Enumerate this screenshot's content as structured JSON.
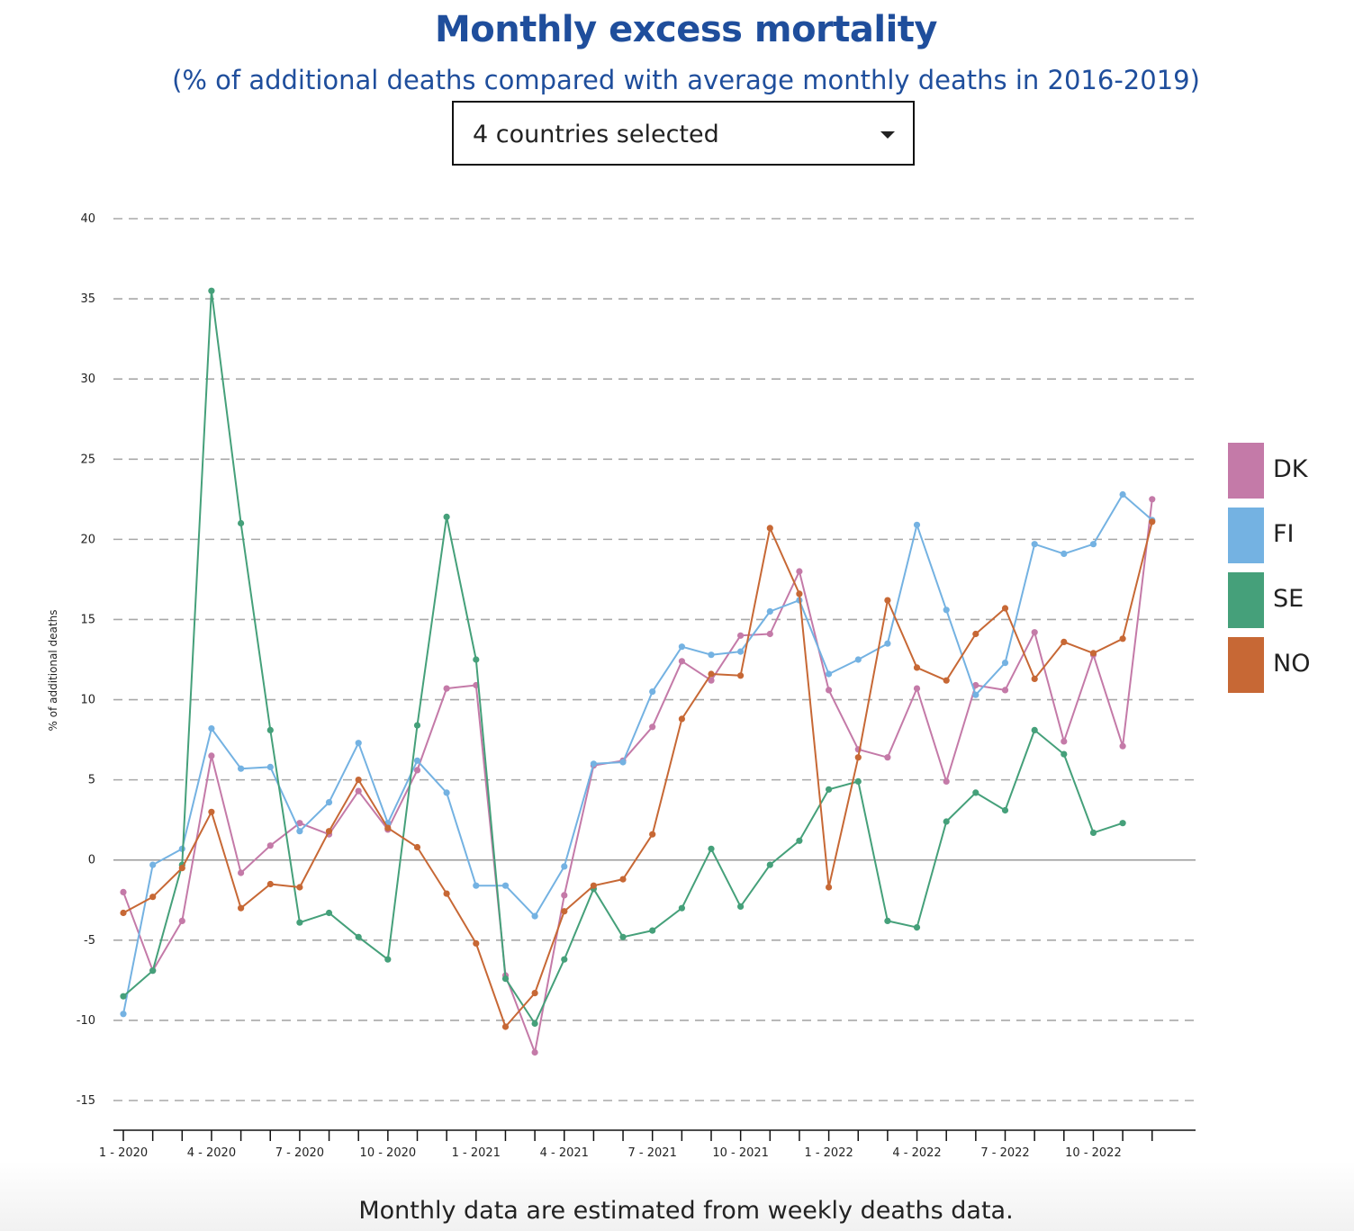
{
  "header": {
    "title": "Monthly excess mortality",
    "subtitle": "(% of additional deaths compared with average monthly deaths in 2016-2019)"
  },
  "selector": {
    "label": "4 countries selected",
    "icon": "caret-down-icon"
  },
  "footer": {
    "note": "Monthly data are estimated from weekly deaths data."
  },
  "legend": [
    {
      "label": "DK",
      "color": "#c47aa8"
    },
    {
      "label": "FI",
      "color": "#74b2e2"
    },
    {
      "label": "SE",
      "color": "#45a07a"
    },
    {
      "label": "NO",
      "color": "#c76835"
    }
  ],
  "chart_data": {
    "type": "line",
    "ylabel": "% of additional deaths",
    "xlabel": "",
    "ylim": [
      -15,
      40
    ],
    "yticks": [
      -15,
      -10,
      -5,
      0,
      5,
      10,
      15,
      20,
      25,
      30,
      35,
      40
    ],
    "grid": "dashed horizontal",
    "legend_position": "right",
    "x": [
      "1 - 2020",
      "2 - 2020",
      "3 - 2020",
      "4 - 2020",
      "5 - 2020",
      "6 - 2020",
      "7 - 2020",
      "8 - 2020",
      "9 - 2020",
      "10 - 2020",
      "11 - 2020",
      "12 - 2020",
      "1 - 2021",
      "2 - 2021",
      "3 - 2021",
      "4 - 2021",
      "5 - 2021",
      "6 - 2021",
      "7 - 2021",
      "8 - 2021",
      "9 - 2021",
      "10 - 2021",
      "11 - 2021",
      "12 - 2021",
      "1 - 2022",
      "2 - 2022",
      "3 - 2022",
      "4 - 2022",
      "5 - 2022",
      "6 - 2022",
      "7 - 2022",
      "8 - 2022",
      "9 - 2022",
      "10 - 2022",
      "11 - 2022",
      "12 - 2022"
    ],
    "xtick_labels": [
      "1 - 2020",
      "4 - 2020",
      "7 - 2020",
      "10 - 2020",
      "1 - 2021",
      "4 - 2021",
      "7 - 2021",
      "10 - 2021",
      "1 - 2022",
      "4 - 2022",
      "7 - 2022",
      "10 - 2022"
    ],
    "series": [
      {
        "name": "DK",
        "color": "#c47aa8",
        "values": [
          -2.0,
          -6.9,
          -3.8,
          6.5,
          -0.8,
          0.9,
          2.3,
          1.6,
          4.3,
          1.9,
          5.6,
          10.7,
          10.9,
          -7.2,
          -12.0,
          -2.2,
          5.9,
          6.2,
          8.3,
          12.4,
          11.2,
          14.0,
          14.1,
          18.0,
          10.6,
          6.9,
          6.4,
          10.7,
          4.9,
          10.9,
          10.6,
          14.2,
          7.4,
          12.8,
          7.1,
          22.5
        ]
      },
      {
        "name": "FI",
        "color": "#74b2e2",
        "values": [
          -9.6,
          -0.3,
          0.7,
          8.2,
          5.7,
          5.8,
          1.8,
          3.6,
          7.3,
          2.3,
          6.2,
          4.2,
          -1.6,
          -1.6,
          -3.5,
          -0.4,
          6.0,
          6.1,
          10.5,
          13.3,
          12.8,
          13.0,
          15.5,
          16.2,
          11.6,
          12.5,
          13.5,
          20.9,
          15.6,
          10.3,
          12.3,
          19.7,
          19.1,
          19.7,
          22.8,
          21.2
        ]
      },
      {
        "name": "SE",
        "color": "#45a07a",
        "values": [
          -8.5,
          -6.9,
          -0.3,
          35.5,
          21.0,
          8.1,
          -3.9,
          -3.3,
          -4.8,
          -6.2,
          8.4,
          21.4,
          12.5,
          -7.4,
          -10.2,
          -6.2,
          -1.8,
          -4.8,
          -4.4,
          -3.0,
          0.7,
          -2.9,
          -0.3,
          1.2,
          4.4,
          4.9,
          -3.8,
          -4.2,
          2.4,
          4.2,
          3.1,
          8.1,
          6.6,
          1.7,
          2.3,
          null
        ]
      },
      {
        "name": "NO",
        "color": "#c76835",
        "values": [
          -3.3,
          -2.3,
          -0.5,
          3.0,
          -3.0,
          -1.5,
          -1.7,
          1.8,
          5.0,
          2.0,
          0.8,
          -2.1,
          -5.2,
          -10.4,
          -8.3,
          -3.2,
          -1.6,
          -1.2,
          1.6,
          8.8,
          11.6,
          11.5,
          20.7,
          16.6,
          -1.7,
          6.4,
          16.2,
          12.0,
          11.2,
          14.1,
          15.7,
          11.3,
          13.6,
          12.9,
          13.8,
          21.1
        ]
      }
    ]
  }
}
